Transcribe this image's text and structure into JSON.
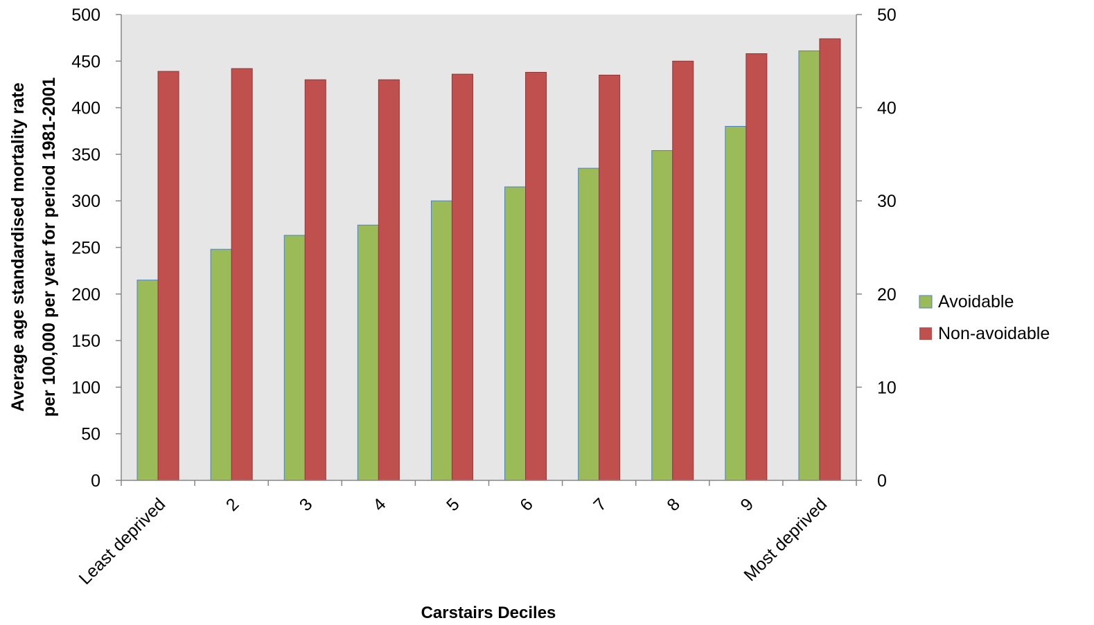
{
  "chart_data": {
    "type": "bar",
    "categories": [
      "Least deprived",
      "2",
      "3",
      "4",
      "5",
      "6",
      "7",
      "8",
      "9",
      "Most deprived"
    ],
    "series": [
      {
        "name": "Avoidable",
        "axis": "right",
        "color": "#9BBB59",
        "values": [
          21.5,
          24.8,
          26.3,
          27.4,
          30.0,
          31.5,
          33.5,
          35.4,
          38.0,
          46.1
        ]
      },
      {
        "name": "Non-avoidable",
        "axis": "left",
        "color": "#C0504D",
        "values": [
          439,
          442,
          430,
          430,
          436,
          438,
          435,
          450,
          458,
          474
        ]
      }
    ],
    "xlabel": "Carstairs Deciles",
    "ylabel_line1": "Average age standardised mortality rate",
    "ylabel_line2": "per 100,000 per year for period 1981-2001",
    "ylim_left": [
      0,
      500
    ],
    "yticks_left": [
      "0",
      "50",
      "100",
      "150",
      "200",
      "250",
      "300",
      "350",
      "400",
      "450",
      "500"
    ],
    "ylim_right": [
      0,
      50
    ],
    "yticks_right": [
      "0",
      "10",
      "20",
      "30",
      "40",
      "50"
    ],
    "plot_background": "#E6E6E6",
    "grid": false,
    "legend_position": "right"
  }
}
